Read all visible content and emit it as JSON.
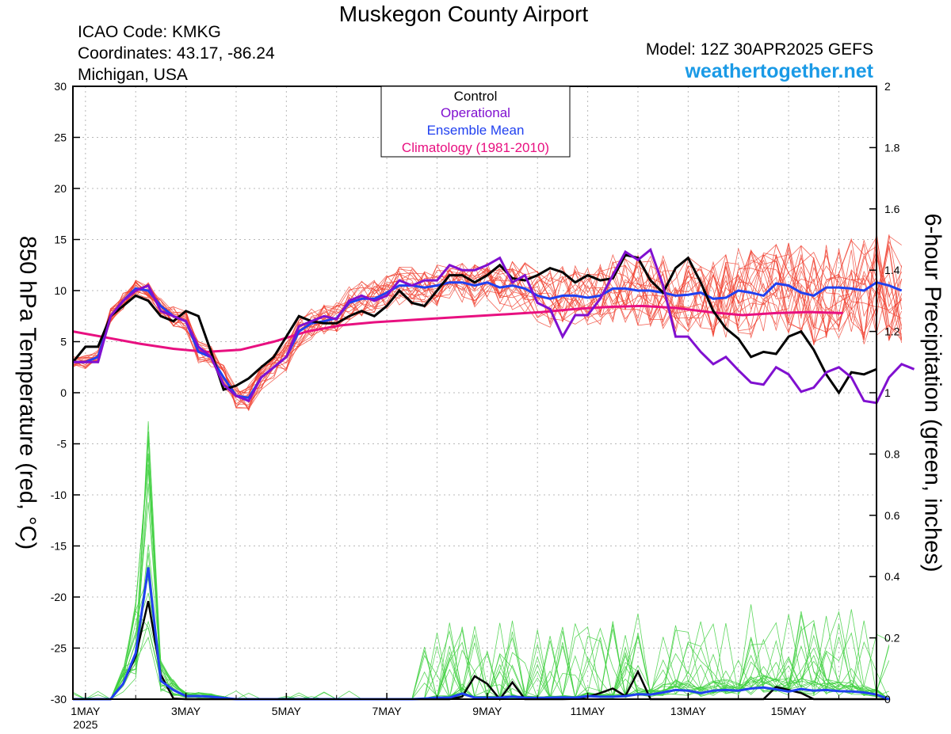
{
  "header": {
    "title": "Muskegon County Airport",
    "icao": "ICAO Code: KMKG",
    "coordinates": "Coordinates: 43.17, -86.24",
    "location": "Michigan, USA",
    "model": "Model: 12Z 30APR2025 GEFS",
    "site": "weathertogether.net"
  },
  "colors": {
    "members_temp": "#f04030",
    "members_precip": "#40d040",
    "control": "#000000",
    "operational": "#8010d0",
    "mean": "#2040f0",
    "climatology": "#e81080",
    "site": "#1a9ae6"
  },
  "chart_data": {
    "type": "line",
    "title": "Muskegon County Airport",
    "ylabel_left": "850 hPa Temperature (red, °C)",
    "ylabel_right": "6-hour Precipitation (green, inches)",
    "ylim_left": [
      -30,
      30
    ],
    "ylim_right": [
      0,
      2
    ],
    "xlim_days": [
      0.75,
      16.75
    ],
    "yticks_left": [
      "30",
      "25",
      "20",
      "15",
      "10",
      "5",
      "0",
      "-5",
      "-10",
      "-15",
      "-20",
      "-25",
      "-30"
    ],
    "yticks_right": [
      "2",
      "1.8",
      "1.6",
      "1.4",
      "1.2",
      "1",
      "0.8",
      "0.6",
      "0.4",
      "0.2",
      "0"
    ],
    "x_tick_labels": [
      "1MAY",
      "3MAY",
      "5MAY",
      "7MAY",
      "9MAY",
      "11MAY",
      "13MAY",
      "15MAY"
    ],
    "x_tick_sublabel": "2025",
    "grid": true,
    "legend": {
      "placement": "top-center",
      "entries": [
        "Control",
        "Operational",
        "Ensemble Mean",
        "Climatology (1981-2010)"
      ]
    },
    "control_temp": [
      3,
      4.5,
      4.5,
      7.5,
      8.5,
      9.5,
      9,
      7.5,
      7,
      8,
      7.5,
      4,
      0.3,
      0.7,
      1.4,
      2.5,
      3.5,
      5.5,
      7.5,
      7,
      6.8,
      6.8,
      7.5,
      8,
      7.5,
      8.5,
      10,
      8.8,
      8.5,
      10,
      11.5,
      11.5,
      10.8,
      11.5,
      12.5,
      11.2,
      11,
      11.5,
      12.2,
      11.8,
      10.8,
      11.5,
      11,
      11.2,
      13.5,
      13.2,
      11,
      9.8,
      12.2,
      13.2,
      10.8,
      8,
      6.3,
      5.3,
      3.5,
      4,
      3.8,
      5.5,
      6,
      4.2,
      1.8,
      0,
      2,
      1.8,
      2.3
    ],
    "operational_temp": [
      3,
      3,
      3,
      7.5,
      9,
      10,
      10.5,
      8,
      7.5,
      7,
      4.5,
      3.5,
      0.8,
      -0.3,
      -0.8,
      1.5,
      2.5,
      3.5,
      6.5,
      7,
      7.5,
      7.2,
      9,
      9.5,
      9,
      9.5,
      11,
      10.5,
      11,
      11,
      12.5,
      12,
      12,
      12.5,
      13.2,
      10.8,
      11.5,
      8.8,
      8.2,
      5.5,
      7.6,
      7.6,
      9.2,
      11.5,
      13.8,
      13,
      14,
      10.5,
      5.5,
      5.5,
      4,
      2.8,
      3.5,
      2.2,
      1,
      0.8,
      2.5,
      1.8,
      0.1,
      0.5,
      2,
      2.5,
      1.5,
      -0.8,
      -1,
      1.5,
      2.8,
      2.3
    ],
    "mean_temp": [
      3,
      3,
      3.5,
      7.5,
      9,
      10.2,
      10,
      8.5,
      7.5,
      7,
      4,
      3.5,
      1.5,
      -0.3,
      -0.5,
      1.5,
      2.5,
      3.5,
      6,
      6.8,
      7,
      7.3,
      8.8,
      9.2,
      9.2,
      9.8,
      10.5,
      10.5,
      10.3,
      10.5,
      10.8,
      10.8,
      10.5,
      10.8,
      10.3,
      10.5,
      10.2,
      9.5,
      9.2,
      9.5,
      9.5,
      9.3,
      9.5,
      10.2,
      10.2,
      10,
      10,
      9.8,
      9.5,
      9.6,
      9.8,
      9.2,
      9.3,
      10,
      9.8,
      9.5,
      10.7,
      10.5,
      9.8,
      9.5,
      10.3,
      10.3,
      10.2,
      10,
      10.8,
      10.5,
      10
    ],
    "climatology_temp": [
      6,
      5.4,
      4.8,
      4.3,
      4,
      4.2,
      5,
      6,
      6.6,
      6.9,
      7.1,
      7.3,
      7.5,
      7.7,
      7.9,
      8.2,
      8.4,
      8.5,
      8.3,
      7.9,
      7.6,
      7.8,
      7.9,
      7.8
    ],
    "control_precip": [
      0,
      0,
      0,
      0,
      0.05,
      0.14,
      0.32,
      0.08,
      0.002,
      0,
      0,
      0,
      0,
      0,
      0,
      0,
      0,
      0,
      0,
      0,
      0,
      0,
      0,
      0,
      0,
      0,
      0,
      0,
      0,
      0,
      0,
      0.008,
      0.075,
      0.05,
      0,
      0.055,
      0,
      0,
      0,
      0,
      0.001,
      0.008,
      0.02,
      0.035,
      0.01,
      0.09,
      0,
      0,
      0,
      0,
      0,
      0,
      0,
      0,
      0,
      0,
      0.04,
      0.03,
      0.02,
      0,
      0,
      0,
      0,
      0,
      0,
      0
    ],
    "mean_precip": [
      0,
      0,
      0,
      0,
      0.05,
      0.15,
      0.43,
      0.06,
      0.03,
      0.01,
      0.01,
      0.008,
      0.004,
      0,
      0,
      0,
      0,
      0,
      0,
      0,
      0,
      0,
      0,
      0,
      0,
      0,
      0,
      0,
      0.002,
      0.005,
      0.005,
      0.018,
      0.005,
      0.005,
      0.005,
      0.008,
      0.005,
      0.004,
      0.005,
      0.006,
      0.005,
      0.01,
      0.008,
      0.008,
      0.01,
      0.016,
      0.015,
      0.022,
      0.03,
      0.028,
      0.02,
      0.028,
      0.03,
      0.028,
      0.035,
      0.038,
      0.032,
      0.025,
      0.033,
      0.028,
      0.03,
      0.026,
      0.025,
      0.022,
      0.015,
      0
    ]
  }
}
